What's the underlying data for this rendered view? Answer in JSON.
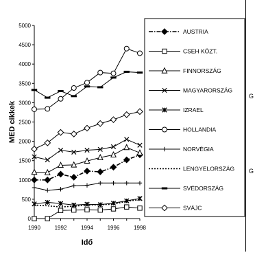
{
  "chart_data": {
    "type": "line",
    "title": "",
    "xlabel": "Idő",
    "ylabel": "MED cikkek",
    "xlim": [
      1990,
      1998
    ],
    "ylim": [
      0,
      5000
    ],
    "x_ticks": [
      "1990",
      "1992",
      "1994",
      "1996",
      "1998"
    ],
    "y_ticks": [
      "0",
      "500",
      "1000",
      "1500",
      "2000",
      "2500",
      "3000",
      "3500",
      "4000",
      "4500",
      "5000"
    ],
    "x": [
      1990,
      1991,
      1992,
      1993,
      1994,
      1995,
      1996,
      1997,
      1998
    ],
    "grid": false,
    "legend_position": "right",
    "series": [
      {
        "name": "AUSTRIA",
        "marker": "diamond-filled",
        "line": "dashdot",
        "values": [
          1000,
          1000,
          1150,
          1070,
          1230,
          1210,
          1330,
          1520,
          1650
        ]
      },
      {
        "name": "CSEH KÖZT.",
        "marker": "square-open",
        "line": "solid",
        "values": [
          0,
          0,
          210,
          220,
          230,
          220,
          250,
          300,
          270
        ]
      },
      {
        "name": "FINNORSZÁG",
        "marker": "triangle-open",
        "line": "solid",
        "values": [
          1200,
          1190,
          1380,
          1390,
          1490,
          1580,
          1650,
          1840,
          1700
        ]
      },
      {
        "name": "MAGYARORSZÁG",
        "marker": "x",
        "line": "solid",
        "values": [
          1600,
          1520,
          1770,
          1720,
          1770,
          1790,
          1860,
          2050,
          1900
        ]
      },
      {
        "name": "IZRAEL",
        "marker": "asterisk",
        "line": "solid",
        "values": [
          380,
          420,
          390,
          350,
          370,
          360,
          400,
          460,
          520
        ]
      },
      {
        "name": "HOLLANDIA",
        "marker": "circle-open",
        "line": "solid",
        "values": [
          2830,
          2840,
          3100,
          3380,
          3520,
          3780,
          3760,
          4400,
          4280
        ]
      },
      {
        "name": "NORVÉGIA",
        "marker": "plus",
        "line": "solid",
        "values": [
          800,
          730,
          760,
          850,
          860,
          920,
          920,
          920,
          920
        ]
      },
      {
        "name": "LENGYELORSZÁG",
        "marker": "none",
        "line": "dotted",
        "values": [
          350,
          330,
          300,
          320,
          350,
          360,
          370,
          450,
          490
        ]
      },
      {
        "name": "SVÉDORSZÁG",
        "marker": "dash",
        "line": "solid",
        "values": [
          3330,
          3130,
          3300,
          3170,
          3420,
          3400,
          3650,
          3800,
          3780
        ]
      },
      {
        "name": "SVÁJC",
        "marker": "diamond-open",
        "line": "solid",
        "values": [
          1800,
          1960,
          2230,
          2190,
          2340,
          2460,
          2560,
          2690,
          2770
        ]
      }
    ]
  },
  "fragments": {
    "r1": "G",
    "r2": "G"
  }
}
